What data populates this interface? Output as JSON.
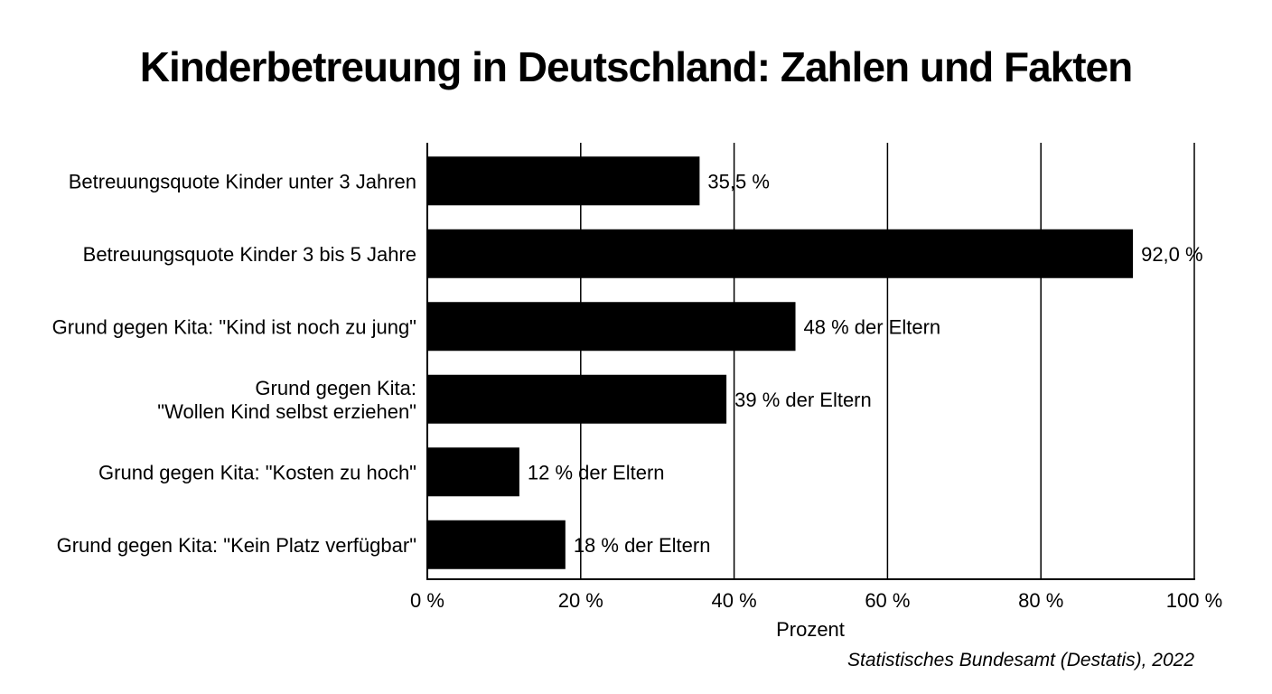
{
  "chart_data": {
    "type": "bar",
    "orientation": "horizontal",
    "title": "Kinderbetreuung in Deutschland: Zahlen und Fakten",
    "categories": [
      [
        "Betreuungsquote Kinder unter 3 Jahren"
      ],
      [
        "Betreuungsquote Kinder 3 bis 5 Jahre"
      ],
      [
        "Grund gegen Kita: \"Kind ist noch zu jung\""
      ],
      [
        "Grund gegen Kita:",
        "\"Wollen Kind selbst erziehen\""
      ],
      [
        "Grund gegen Kita: \"Kosten zu hoch\""
      ],
      [
        "Grund gegen Kita: \"Kein Platz verfügbar\""
      ]
    ],
    "values": [
      35.5,
      92.0,
      48,
      39,
      12,
      18
    ],
    "value_labels": [
      "35,5 %",
      "92,0 %",
      "48 % der Eltern",
      "39 % der Eltern",
      "12 % der Eltern",
      "18 % der Eltern"
    ],
    "xlabel": "Prozent",
    "ylabel": "",
    "xlim": [
      0,
      100
    ],
    "xticks": [
      0,
      20,
      40,
      60,
      80,
      100
    ],
    "xtick_labels": [
      "0 %",
      "20 %",
      "40 %",
      "60 %",
      "80 %",
      "100 %"
    ],
    "grid": "vertical",
    "bar_color": "#000000",
    "source": "Statistisches Bundesamt (Destatis), 2022"
  }
}
